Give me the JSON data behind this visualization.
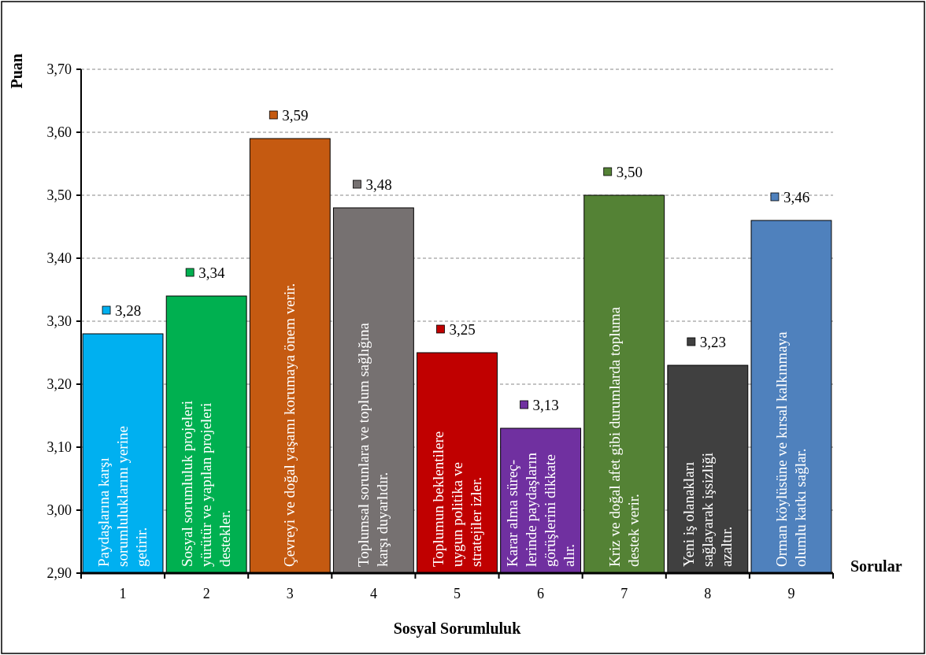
{
  "chart_data": {
    "type": "bar",
    "ylabel": "Puan",
    "xlabel": "Sosyal Sorumluluk",
    "x2label": "Sorular",
    "categories": [
      "1",
      "2",
      "3",
      "4",
      "5",
      "6",
      "7",
      "8",
      "9"
    ],
    "values": [
      3.28,
      3.34,
      3.59,
      3.48,
      3.25,
      3.13,
      3.5,
      3.23,
      3.46
    ],
    "value_labels": [
      "3,28",
      "3,34",
      "3,59",
      "3,48",
      "3,25",
      "3,13",
      "3,50",
      "3,23",
      "3,46"
    ],
    "colors": [
      "#00b0f0",
      "#00b050",
      "#c55a11",
      "#767171",
      "#c00000",
      "#7030a0",
      "#548235",
      "#404040",
      "#4f81bd"
    ],
    "ylim": [
      2.9,
      3.7
    ],
    "yticks": [
      {
        "value": 2.9,
        "label": "2,90"
      },
      {
        "value": 3.0,
        "label": "3,00"
      },
      {
        "value": 3.1,
        "label": "3,10"
      },
      {
        "value": 3.2,
        "label": "3,20"
      },
      {
        "value": 3.3,
        "label": "3,30"
      },
      {
        "value": 3.4,
        "label": "3,40"
      },
      {
        "value": 3.5,
        "label": "3,50"
      },
      {
        "value": 3.6,
        "label": "3,60"
      },
      {
        "value": 3.7,
        "label": "3,70"
      }
    ],
    "grid": "y",
    "annotations": [
      "Paydaşlarına karşı\nsorumluluklarını yerine\ngetirir.",
      "Sosyal sorumluluk projeleri\nyürütür ve yapılan projeleri\ndestekler.",
      "Çevreyi ve doğal yaşamı korumaya önem verir.",
      "Toplumsal sorunlara ve toplum sağlığına\nkarşı duyarlıdır.",
      "Toplumun beklentilere\nuygun politika ve\nstratejiler izler.",
      "Karar alma süreç-\nlerinde paydaşların\ngörüşlerini dikkate\nalır.",
      "Kriz ve doğal afet gibi durumlarda topluma\ndestek verir.",
      "Yeni iş olanakları\nsağlayarak işsizliği\nazaltır.",
      "Orman köylüsüne ve kırsal kalkınmaya\nolumlu katkı sağlar."
    ]
  }
}
